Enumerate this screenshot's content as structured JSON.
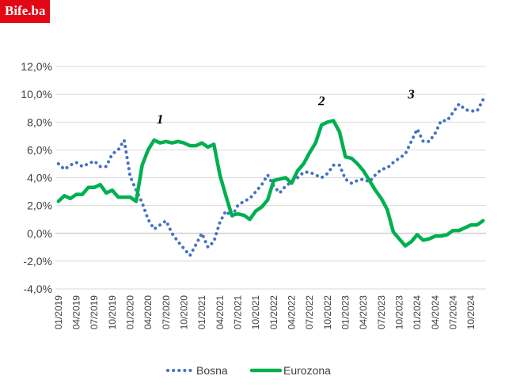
{
  "logo": "Bife.ba",
  "colors": {
    "bosna": "#4472c4",
    "eurozona": "#00b050",
    "logo_bg": "#e30613"
  },
  "chart_data": {
    "type": "line",
    "title": "",
    "xlabel": "",
    "ylabel": "",
    "ylim": [
      -4,
      12
    ],
    "y_ticks": [
      "-4,0%",
      "-2,0%",
      "0,0%",
      "2,0%",
      "4,0%",
      "6,0%",
      "8,0%",
      "10,0%",
      "12,0%"
    ],
    "y_tick_values": [
      -4,
      -2,
      0,
      2,
      4,
      6,
      8,
      10,
      12
    ],
    "grid": "horizontal",
    "legend_position": "bottom",
    "x": [
      "01/2019",
      "02/2019",
      "03/2019",
      "04/2019",
      "05/2019",
      "06/2019",
      "07/2019",
      "08/2019",
      "09/2019",
      "10/2019",
      "11/2019",
      "12/2019",
      "01/2020",
      "02/2020",
      "03/2020",
      "04/2020",
      "05/2020",
      "06/2020",
      "07/2020",
      "08/2020",
      "09/2020",
      "10/2020",
      "11/2020",
      "12/2020",
      "01/2021",
      "02/2021",
      "03/2021",
      "04/2021",
      "05/2021",
      "06/2021",
      "07/2021",
      "08/2021",
      "09/2021",
      "10/2021",
      "11/2021",
      "12/2021",
      "01/2022",
      "02/2022",
      "03/2022",
      "04/2022",
      "05/2022",
      "06/2022",
      "07/2022",
      "08/2022",
      "09/2022",
      "10/2022",
      "11/2022",
      "12/2022",
      "01/2023",
      "02/2023",
      "03/2023",
      "04/2023",
      "05/2023",
      "06/2023",
      "07/2023",
      "08/2023",
      "09/2023",
      "10/2023",
      "11/2023",
      "12/2023",
      "01/2024",
      "02/2024",
      "03/2024",
      "04/2024",
      "05/2024",
      "06/2024",
      "07/2024",
      "08/2024",
      "09/2024",
      "10/2024",
      "11/2024",
      "12/2024"
    ],
    "x_tick_labels": [
      "01/2019",
      "04/2019",
      "07/2019",
      "10/2019",
      "01/2020",
      "04/2020",
      "07/2020",
      "10/2020",
      "01/2021",
      "04/2021",
      "07/2021",
      "10/2021",
      "01/2022",
      "04/2022",
      "07/2022",
      "10/2022",
      "01/2023",
      "04/2023",
      "07/2023",
      "10/2023",
      "01/2024",
      "04/2024",
      "07/2024",
      "10/2024"
    ],
    "series": [
      {
        "name": "Bosna",
        "style": "dotted",
        "values": [
          5.0,
          4.6,
          4.9,
          5.1,
          4.8,
          5.0,
          5.2,
          4.8,
          4.8,
          5.7,
          6.0,
          6.7,
          4.1,
          3.1,
          2.2,
          1.0,
          0.3,
          0.6,
          0.9,
          0.0,
          -0.6,
          -1.1,
          -1.6,
          -0.8,
          0.0,
          -1.0,
          -0.6,
          0.8,
          1.6,
          1.2,
          2.0,
          2.3,
          2.5,
          3.0,
          3.5,
          4.2,
          3.4,
          2.9,
          3.4,
          3.7,
          4.0,
          4.4,
          4.4,
          4.2,
          4.0,
          4.3,
          4.9,
          4.9,
          3.9,
          3.6,
          3.8,
          3.9,
          3.7,
          4.2,
          4.6,
          4.7,
          5.1,
          5.4,
          5.7,
          6.6,
          7.5,
          6.6,
          6.6,
          7.2,
          8.1,
          8.1,
          8.7,
          9.3,
          8.9,
          8.8,
          8.8,
          9.6
        ]
      },
      {
        "name": "Eurozona",
        "style": "solid",
        "values": [
          2.3,
          2.7,
          2.5,
          2.8,
          2.8,
          3.3,
          3.3,
          3.5,
          2.9,
          3.1,
          2.6,
          2.6,
          2.6,
          2.3,
          4.9,
          6.0,
          6.7,
          6.5,
          6.6,
          6.5,
          6.6,
          6.5,
          6.3,
          6.3,
          6.5,
          6.2,
          6.4,
          4.2,
          2.7,
          1.3,
          1.4,
          1.3,
          1.0,
          1.6,
          1.9,
          2.4,
          3.8,
          3.9,
          4.0,
          3.6,
          4.5,
          5.0,
          5.8,
          6.5,
          7.8,
          8.0,
          8.1,
          7.3,
          5.5,
          5.4,
          5.0,
          4.5,
          3.8,
          3.1,
          2.5,
          1.7,
          0.1,
          -0.4,
          -0.9,
          -0.6,
          -0.1,
          -0.5,
          -0.4,
          -0.2,
          -0.2,
          -0.1,
          0.2,
          0.2,
          0.4,
          0.6,
          0.6,
          0.9
        ]
      }
    ],
    "annotations": [
      {
        "text": "1",
        "x": "06/2020",
        "y": 7.9
      },
      {
        "text": "2",
        "x": "09/2022",
        "y": 9.2
      },
      {
        "text": "3",
        "x": "12/2023",
        "y": 9.7
      }
    ]
  }
}
